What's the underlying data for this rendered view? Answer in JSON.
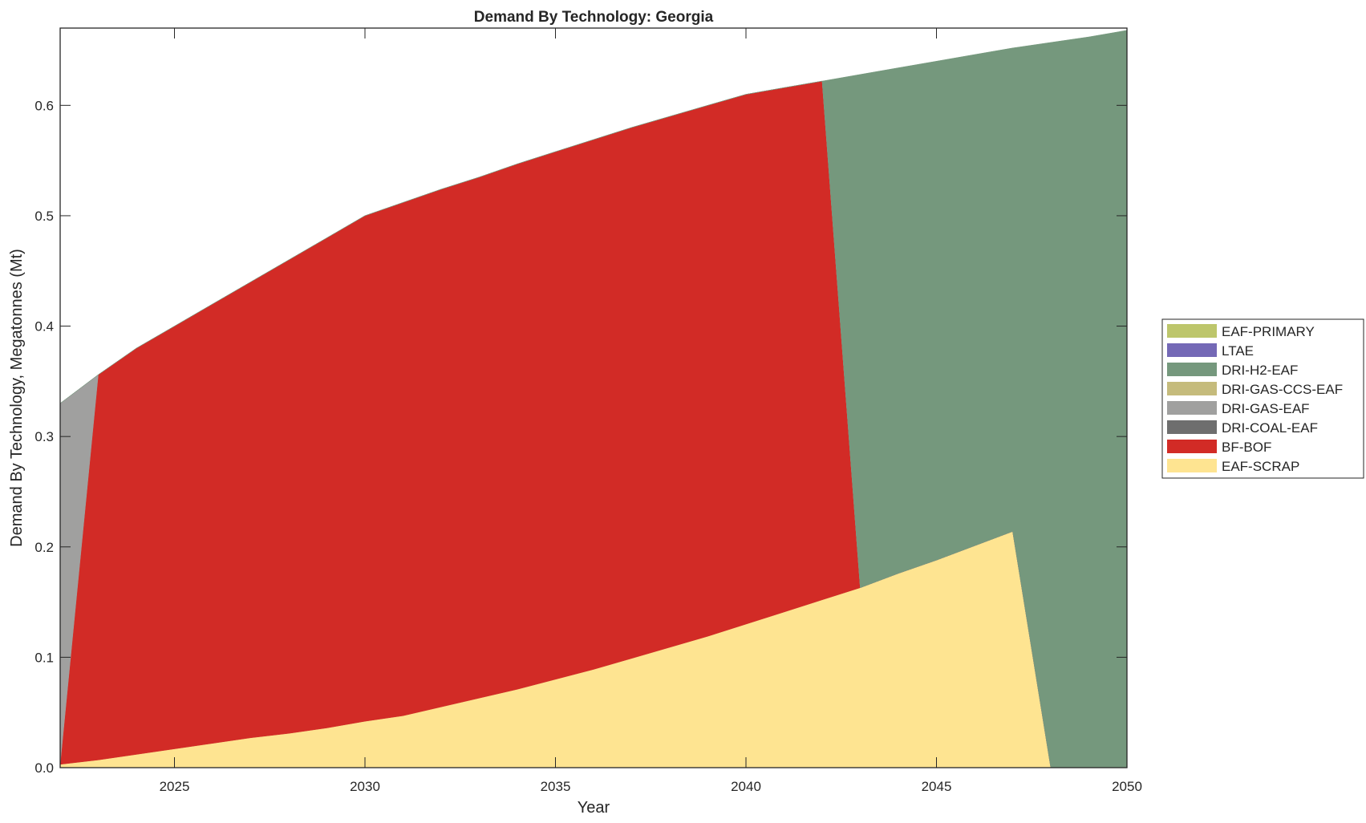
{
  "chart_data": {
    "type": "area",
    "title": "Demand By Technology: Georgia",
    "xlabel": "Year",
    "ylabel": "Demand By Technology, Megatonnes (Mt)",
    "xlim": [
      2022,
      2050
    ],
    "ylim": [
      0,
      0.67
    ],
    "xticks": [
      2025,
      2030,
      2035,
      2040,
      2045,
      2050
    ],
    "yticks": [
      0.0,
      0.1,
      0.2,
      0.3,
      0.4,
      0.5,
      0.6
    ],
    "ytick_labels": [
      "0.0",
      "0.1",
      "0.2",
      "0.3",
      "0.4",
      "0.5",
      "0.6"
    ],
    "legend_position": "outside-right",
    "x": [
      2022,
      2023,
      2024,
      2025,
      2026,
      2027,
      2028,
      2029,
      2030,
      2031,
      2032,
      2033,
      2034,
      2035,
      2036,
      2037,
      2038,
      2039,
      2040,
      2041,
      2042,
      2043,
      2044,
      2045,
      2046,
      2047,
      2048,
      2049,
      2050
    ],
    "series": [
      {
        "name": "EAF-SCRAP",
        "color": "#FEE491",
        "values": [
          0.003,
          0.007,
          0.012,
          0.017,
          0.022,
          0.027,
          0.031,
          0.036,
          0.042,
          0.047,
          0.055,
          0.063,
          0.071,
          0.08,
          0.089,
          0.099,
          0.109,
          0.119,
          0.13,
          0.141,
          0.152,
          0.163,
          0.176,
          0.188,
          0.201,
          0.214,
          0,
          0,
          0
        ]
      },
      {
        "name": "BF-BOF",
        "color": "#D22B26",
        "values": [
          0,
          0.349,
          0.368,
          0.383,
          0.398,
          0.413,
          0.429,
          0.444,
          0.458,
          0.465,
          0.469,
          0.472,
          0.476,
          0.478,
          0.48,
          0.481,
          0.481,
          0.481,
          0.48,
          0.475,
          0.47,
          0,
          0,
          0,
          0,
          0,
          0,
          0,
          0
        ]
      },
      {
        "name": "DRI-COAL-EAF",
        "color": "#6E6E6E",
        "values": [
          0,
          0,
          0,
          0,
          0,
          0,
          0,
          0,
          0,
          0,
          0,
          0,
          0,
          0,
          0,
          0,
          0,
          0,
          0,
          0,
          0,
          0,
          0,
          0,
          0,
          0,
          0,
          0,
          0
        ]
      },
      {
        "name": "DRI-GAS-EAF",
        "color": "#A0A09F",
        "values": [
          0.327,
          0,
          0,
          0,
          0,
          0,
          0,
          0,
          0,
          0,
          0,
          0,
          0,
          0,
          0,
          0,
          0,
          0,
          0,
          0,
          0,
          0,
          0,
          0,
          0,
          0,
          0,
          0,
          0
        ]
      },
      {
        "name": "DRI-GAS-CCS-EAF",
        "color": "#C5BB7C",
        "values": [
          0,
          0,
          0,
          0,
          0,
          0,
          0,
          0,
          0,
          0,
          0,
          0,
          0,
          0,
          0,
          0,
          0,
          0,
          0,
          0,
          0,
          0,
          0,
          0,
          0,
          0,
          0,
          0,
          0
        ]
      },
      {
        "name": "DRI-H2-EAF",
        "color": "#75987D",
        "values": [
          0,
          0,
          0,
          0,
          0,
          0,
          0,
          0,
          0,
          0,
          0,
          0,
          0,
          0,
          0,
          0,
          0,
          0,
          0,
          0,
          0,
          0.465,
          0.458,
          0.452,
          0.445,
          0.438,
          0.657,
          0.662,
          0.668
        ]
      },
      {
        "name": "LTAE",
        "color": "#7469B6",
        "values": [
          0,
          0,
          0,
          0,
          0,
          0,
          0,
          0,
          0,
          0,
          0,
          0,
          0,
          0,
          0,
          0,
          0,
          0,
          0,
          0,
          0,
          0,
          0,
          0,
          0,
          0,
          0,
          0,
          0
        ]
      },
      {
        "name": "EAF-PRIMARY",
        "color": "#BDC66B",
        "values": [
          0,
          0,
          0,
          0,
          0,
          0,
          0,
          0,
          0,
          0,
          0,
          0,
          0,
          0,
          0,
          0,
          0,
          0,
          0,
          0,
          0,
          0,
          0,
          0,
          0,
          0,
          0,
          0,
          0
        ]
      }
    ],
    "legend_order": [
      "EAF-PRIMARY",
      "LTAE",
      "DRI-H2-EAF",
      "DRI-GAS-CCS-EAF",
      "DRI-GAS-EAF",
      "DRI-COAL-EAF",
      "BF-BOF",
      "EAF-SCRAP"
    ]
  }
}
